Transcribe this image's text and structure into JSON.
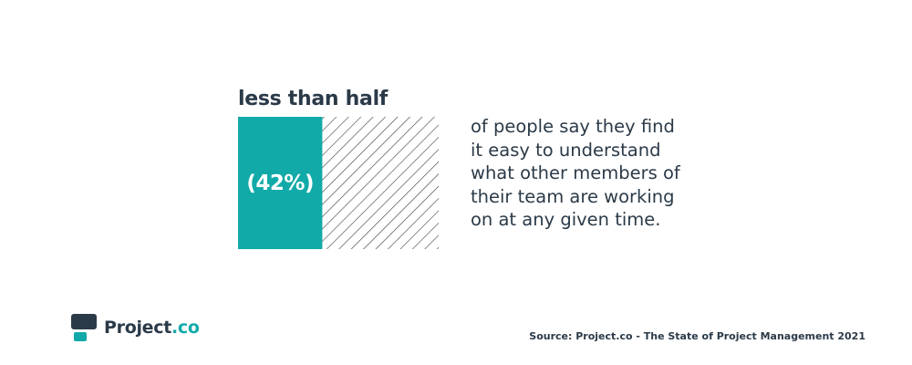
{
  "colors": {
    "accent": "#12aaa8",
    "dark": "#2b3a48",
    "hatch": "#3a3a3a",
    "background": "#ffffff"
  },
  "chart_data": {
    "type": "bar",
    "title": "less than half",
    "value": 42,
    "max": 100,
    "value_label": "(42%)",
    "description_lines": [
      "of people say they find",
      "it easy to understand",
      "what other members of",
      "their team are working",
      "on at any given time."
    ]
  },
  "brand": {
    "name_main": "Project",
    "name_accent": ".co",
    "logo_icon": "project-co-logo-icon"
  },
  "source": "Source: Project.co - The State of Project Management 2021"
}
